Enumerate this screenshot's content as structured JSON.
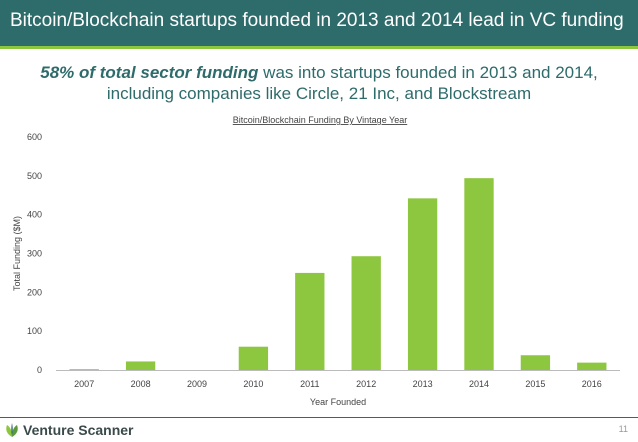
{
  "header": {
    "title": "Bitcoin/Blockchain startups founded in 2013 and 2014 lead in VC funding"
  },
  "subtitle": {
    "emphasis": "58% of total sector funding",
    "line1_rest": " was into startups founded in 2013 and 2014,",
    "line2": "including companies like Circle, 21 Inc, and Blockstream"
  },
  "footer": {
    "logo_text": "Venture Scanner",
    "page_number": "11"
  },
  "colors": {
    "header_bg": "#2e6b6b",
    "accent": "#8cc63f",
    "bar": "#8dc63f"
  },
  "chart_data": {
    "type": "bar",
    "title": "Bitcoin/Blockchain Funding By Vintage Year",
    "xlabel": "Year Founded",
    "ylabel": "Total Funding ($M)",
    "categories": [
      "2007",
      "2008",
      "2009",
      "2010",
      "2011",
      "2012",
      "2013",
      "2014",
      "2015",
      "2016"
    ],
    "values": [
      2,
      22,
      0,
      60,
      250,
      293,
      442,
      494,
      38,
      19
    ],
    "ylim": [
      0,
      600
    ],
    "yticks": [
      0,
      100,
      200,
      300,
      400,
      500,
      600
    ],
    "grid": false,
    "legend": "none"
  }
}
